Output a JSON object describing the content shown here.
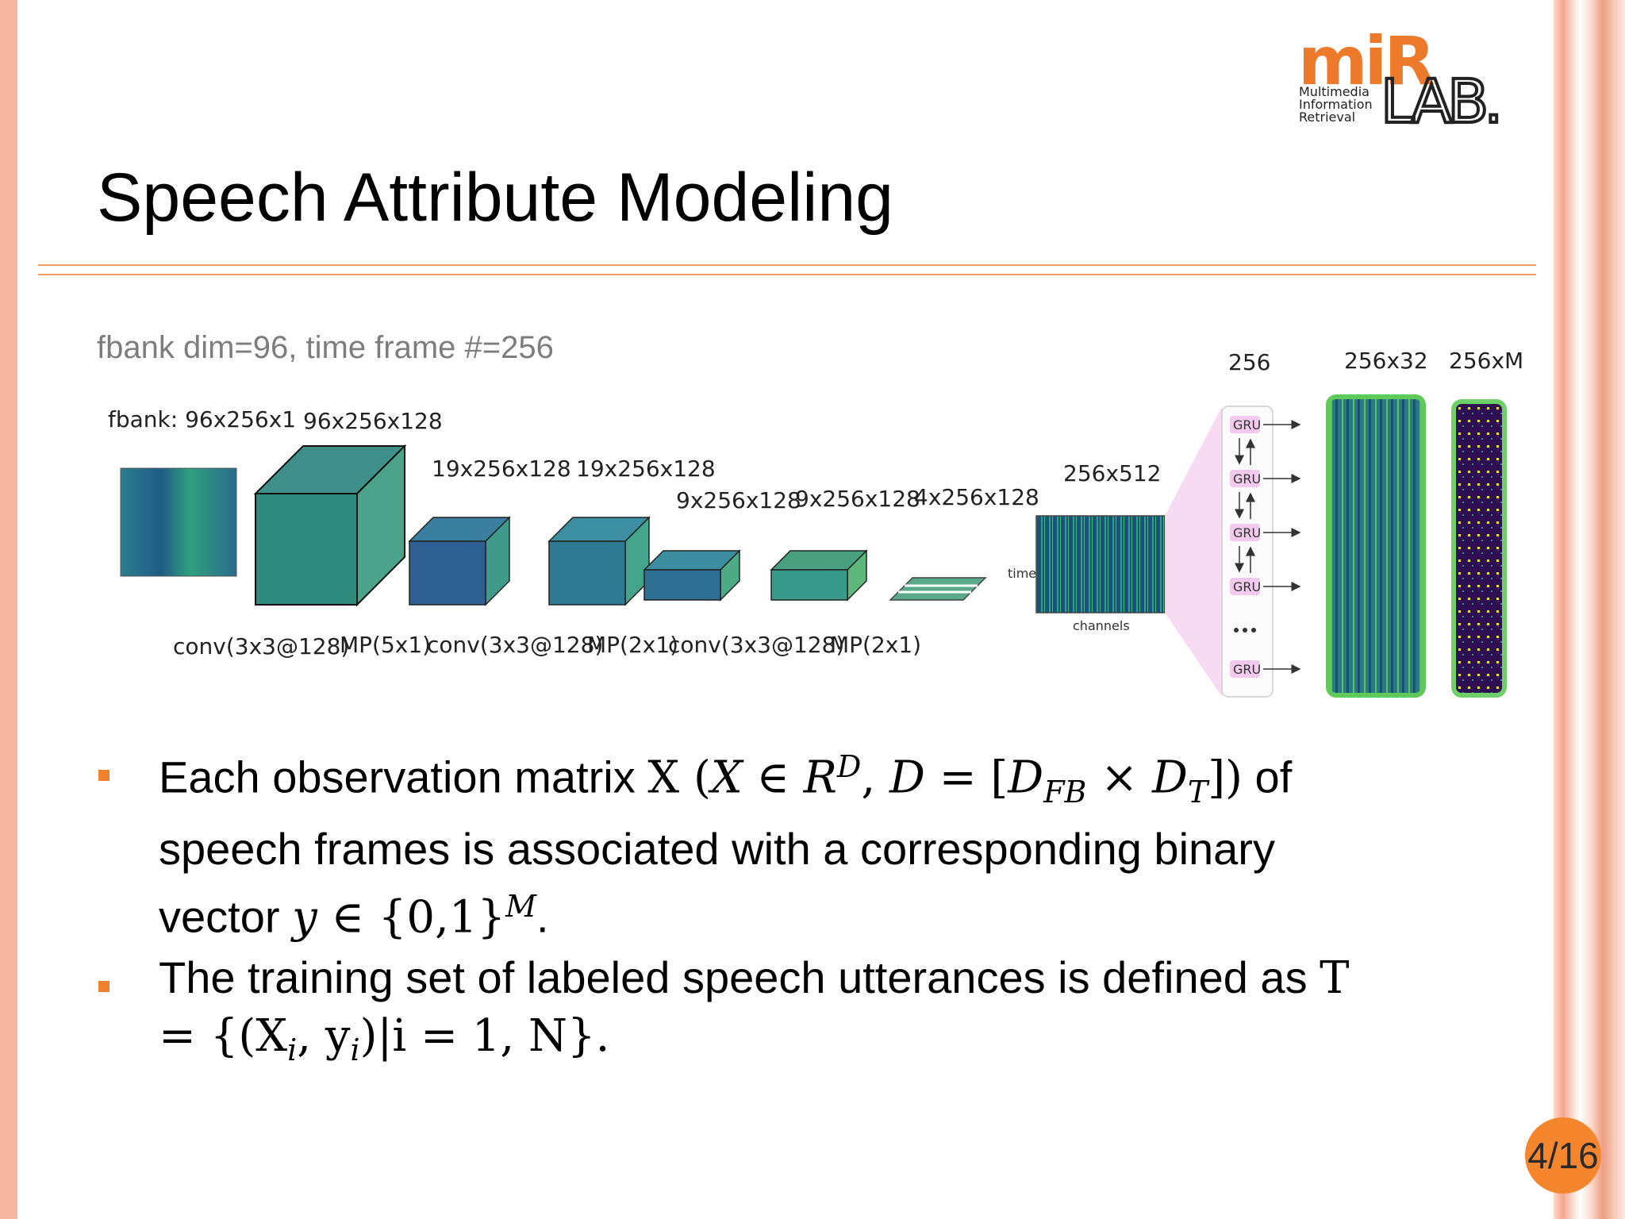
{
  "slide": {
    "title": "Speech Attribute Modeling",
    "page_number": "4/16",
    "accent_color": "#f07f2e"
  },
  "logo": {
    "mir": "miR",
    "lab": "LAB.",
    "line1": "Multimedia",
    "line2": "Information",
    "line3": "Retrieval"
  },
  "diagram": {
    "caption": "fbank dim=96, time frame #=256",
    "dims": {
      "input": "fbank: 96x256x1",
      "conv1": "96x256x128",
      "mp1": "19x256x128",
      "conv2": "19x256x128",
      "mp2": "9x256x128",
      "conv3": "9x256x128",
      "mp3": "4x256x128",
      "reshape": "256x512",
      "gru": "256",
      "dense": "256x32",
      "output": "256xM"
    },
    "ops": [
      "conv(3x3@128)",
      "MP(5x1)",
      "conv(3x3@128)",
      "MP(2x1)",
      "conv(3x3@128)",
      "MP(2x1)"
    ],
    "axis_time": "time",
    "axis_channels": "channels",
    "gru_label": "GRU"
  },
  "bullets": {
    "b1": {
      "t1": "Each observation matrix ",
      "X": "X",
      "open": " (",
      "Xi": "X",
      "in1": " ∈ ",
      "R": "R",
      "D_sup": "D",
      "comma": ", ",
      "D": "D",
      "eq": " = [",
      "D1": "D",
      "FB": "FB",
      "times": " × ",
      "D2": "D",
      "T": "T",
      "close": "])",
      "t2": " of speech frames is associated with a corresponding binary vector ",
      "y": "y",
      "in2": " ∈ ",
      "set": "{0,1}",
      "M": "M",
      "end": "."
    },
    "b2": {
      "t1": "The training set of labeled speech utterances is defined as ",
      "formula": "T = {(X",
      "i1": "i",
      "mid": ", y",
      "i2": "i",
      "tail": ")|i = 1, N}."
    }
  }
}
